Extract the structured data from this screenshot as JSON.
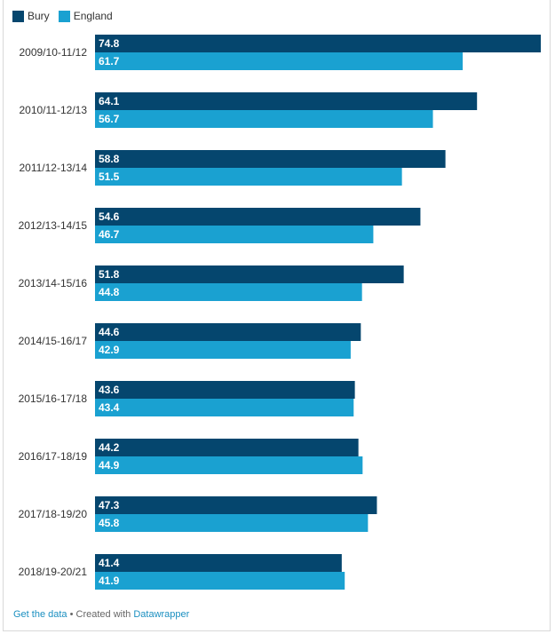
{
  "colors": {
    "bury": "#05466e",
    "england": "#1aa1d1"
  },
  "chart_data": {
    "type": "bar",
    "orientation": "horizontal",
    "title": "",
    "xlabel": "",
    "ylabel": "",
    "legend_position": "top-left",
    "xlim": [
      0,
      74.8
    ],
    "grid": false,
    "categories": [
      "2009/10-11/12",
      "2010/11-12/13",
      "2011/12-13/14",
      "2012/13-14/15",
      "2013/14-15/16",
      "2014/15-16/17",
      "2015/16-17/18",
      "2016/17-18/19",
      "2017/18-19/20",
      "2018/19-20/21"
    ],
    "series": [
      {
        "name": "Bury",
        "color": "#05466e",
        "values": [
          74.8,
          64.1,
          58.8,
          54.6,
          51.8,
          44.6,
          43.6,
          44.2,
          47.3,
          41.4
        ]
      },
      {
        "name": "England",
        "color": "#1aa1d1",
        "values": [
          61.7,
          56.7,
          51.5,
          46.7,
          44.8,
          42.9,
          43.4,
          44.9,
          45.8,
          41.9
        ]
      }
    ]
  },
  "footer": {
    "get_data": "Get the data",
    "separator": " • Created with ",
    "datawrapper": "Datawrapper"
  }
}
